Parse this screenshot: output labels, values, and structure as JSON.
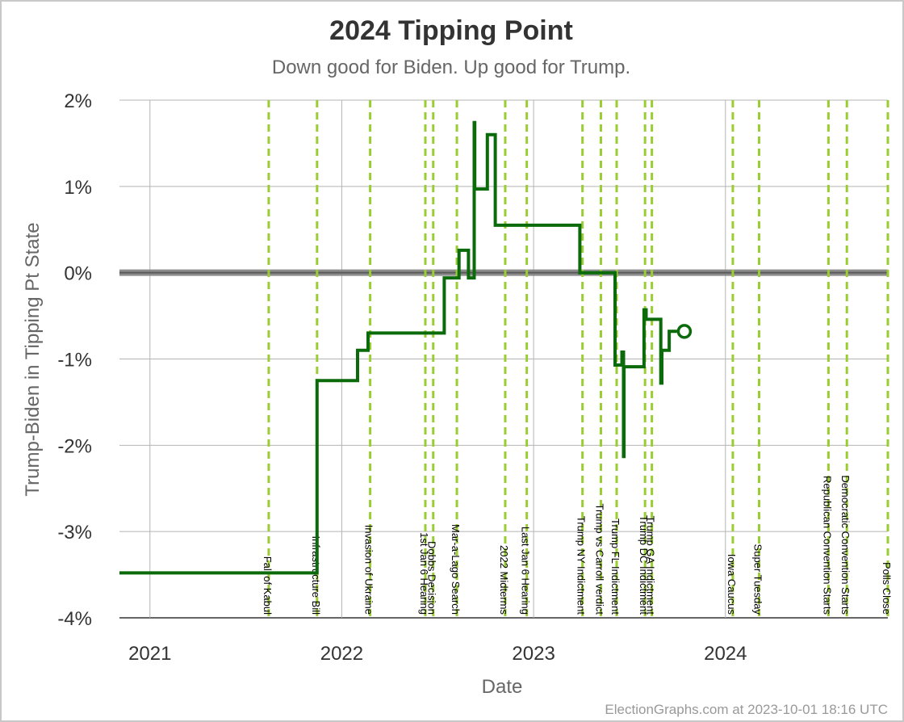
{
  "chart_data": {
    "type": "line",
    "title": "2024 Tipping Point",
    "subtitle": "Down good for Biden. Up good for Trump.",
    "xlabel": "Date",
    "ylabel": "Trump-Biden in Tipping Pt State",
    "credit": "ElectionGraphs.com at 2023-10-01 18:16 UTC",
    "xlim": [
      "2020-11-04",
      "2024-11-05"
    ],
    "ylim": [
      -4,
      2
    ],
    "y_ticks": [
      2,
      1,
      0,
      -1,
      -2,
      -3,
      -4
    ],
    "y_tick_labels": [
      "2%",
      "1%",
      "0%",
      "-1%",
      "-2%",
      "-3%",
      "-4%"
    ],
    "x_ticks": [
      "2021-01-01",
      "2022-01-01",
      "2023-01-01",
      "2024-01-01"
    ],
    "x_tick_labels": [
      "2021",
      "2022",
      "2023",
      "2024"
    ],
    "grid": true,
    "colors": {
      "line": "#0b6b0b",
      "event_line": "#9acd32",
      "zero_line": "#808080",
      "grid": "#b4b4b4"
    },
    "events": [
      {
        "date": "2021-08-15",
        "label": "Fall of Kabul"
      },
      {
        "date": "2021-11-15",
        "label": "Infrastructure Bill"
      },
      {
        "date": "2022-02-24",
        "label": "Invasion of Ukraine"
      },
      {
        "date": "2022-06-09",
        "label": "1st Jan 6 Hearing"
      },
      {
        "date": "2022-06-24",
        "label": "Dobbs Decision"
      },
      {
        "date": "2022-08-08",
        "label": "Mar-a-Lago Search"
      },
      {
        "date": "2022-11-08",
        "label": "2022 Midterms"
      },
      {
        "date": "2022-12-19",
        "label": "Last Jan 6 Hearing"
      },
      {
        "date": "2023-04-04",
        "label": "Trump NY Indictment"
      },
      {
        "date": "2023-05-09",
        "label": "Trump vs Carroll verdict"
      },
      {
        "date": "2023-06-08",
        "label": "Trump FL Indictment"
      },
      {
        "date": "2023-08-01",
        "label": "Trump DC Indictment"
      },
      {
        "date": "2023-08-14",
        "label": "Trump GA Indictment"
      },
      {
        "date": "2024-01-15",
        "label": "Iowa Caucus"
      },
      {
        "date": "2024-03-05",
        "label": "Super Tuesday"
      },
      {
        "date": "2024-07-15",
        "label": "Republican Convention Starts"
      },
      {
        "date": "2024-08-19",
        "label": "Democratic Convention Starts"
      },
      {
        "date": "2024-11-05",
        "label": "Polls Close"
      }
    ],
    "series": [
      {
        "points": [
          [
            "2020-11-04",
            -3.48
          ],
          [
            "2021-11-15",
            -3.48
          ],
          [
            "2021-11-15",
            -1.25
          ],
          [
            "2022-01-31",
            -1.25
          ],
          [
            "2022-01-31",
            -0.9
          ],
          [
            "2022-02-20",
            -0.9
          ],
          [
            "2022-02-20",
            -0.7
          ],
          [
            "2022-07-15",
            -0.7
          ],
          [
            "2022-07-15",
            -0.06
          ],
          [
            "2022-08-12",
            -0.06
          ],
          [
            "2022-08-12",
            0.26
          ],
          [
            "2022-08-30",
            0.26
          ],
          [
            "2022-08-30",
            -0.06
          ],
          [
            "2022-09-10",
            -0.06
          ],
          [
            "2022-09-10",
            1.74
          ],
          [
            "2022-09-11",
            1.74
          ],
          [
            "2022-09-11",
            0.97
          ],
          [
            "2022-10-05",
            0.97
          ],
          [
            "2022-10-05",
            1.6
          ],
          [
            "2022-10-20",
            1.6
          ],
          [
            "2022-10-20",
            0.55
          ],
          [
            "2023-03-30",
            0.55
          ],
          [
            "2023-03-30",
            0.0
          ],
          [
            "2023-06-05",
            0.0
          ],
          [
            "2023-06-05",
            -1.07
          ],
          [
            "2023-06-18",
            -1.07
          ],
          [
            "2023-06-18",
            -0.92
          ],
          [
            "2023-06-21",
            -0.92
          ],
          [
            "2023-06-21",
            -2.13
          ],
          [
            "2023-06-22",
            -2.13
          ],
          [
            "2023-06-22",
            -1.09
          ],
          [
            "2023-07-30",
            -1.09
          ],
          [
            "2023-07-30",
            -0.43
          ],
          [
            "2023-08-03",
            -0.43
          ],
          [
            "2023-08-03",
            -0.54
          ],
          [
            "2023-08-31",
            -0.54
          ],
          [
            "2023-08-31",
            -1.28
          ],
          [
            "2023-09-02",
            -1.28
          ],
          [
            "2023-09-02",
            -0.9
          ],
          [
            "2023-09-16",
            -0.9
          ],
          [
            "2023-09-16",
            -0.68
          ],
          [
            "2023-10-01",
            -0.68
          ]
        ]
      }
    ]
  }
}
